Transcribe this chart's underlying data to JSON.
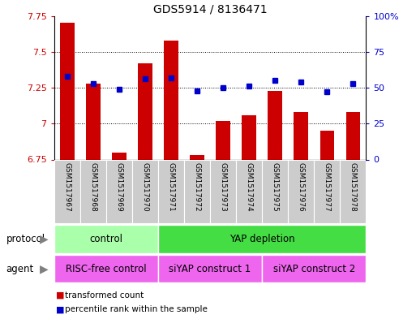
{
  "title": "GDS5914 / 8136471",
  "samples": [
    "GSM1517967",
    "GSM1517968",
    "GSM1517969",
    "GSM1517970",
    "GSM1517971",
    "GSM1517972",
    "GSM1517973",
    "GSM1517974",
    "GSM1517975",
    "GSM1517976",
    "GSM1517977",
    "GSM1517978"
  ],
  "transformed_count": [
    7.7,
    7.28,
    6.8,
    7.42,
    7.58,
    6.78,
    7.02,
    7.06,
    7.23,
    7.08,
    6.95,
    7.08
  ],
  "percentile": [
    58,
    53,
    49,
    56,
    57,
    48,
    50,
    51,
    55,
    54,
    47,
    53
  ],
  "ylim_left": [
    6.75,
    7.75
  ],
  "ylim_right": [
    0,
    100
  ],
  "yticks_left": [
    6.75,
    7.0,
    7.25,
    7.5,
    7.75
  ],
  "yticks_right": [
    0,
    25,
    50,
    75,
    100
  ],
  "ytick_labels_left": [
    "6.75",
    "7",
    "7.25",
    "7.5",
    "7.75"
  ],
  "ytick_labels_right": [
    "0",
    "25",
    "50",
    "75",
    "100%"
  ],
  "bar_color": "#cc0000",
  "dot_color": "#0000cc",
  "bar_bottom": 6.75,
  "protocol_groups": [
    {
      "label": "control",
      "start": 0,
      "end": 3,
      "color": "#aaffaa"
    },
    {
      "label": "YAP depletion",
      "start": 4,
      "end": 11,
      "color": "#44dd44"
    }
  ],
  "agent_groups": [
    {
      "label": "RISC-free control",
      "start": 0,
      "end": 3,
      "color": "#ee66ee"
    },
    {
      "label": "siYAP construct 1",
      "start": 4,
      "end": 7,
      "color": "#ee66ee"
    },
    {
      "label": "siYAP construct 2",
      "start": 8,
      "end": 11,
      "color": "#ee66ee"
    }
  ],
  "legend_items": [
    {
      "label": "transformed count",
      "color": "#cc0000"
    },
    {
      "label": "percentile rank within the sample",
      "color": "#0000cc"
    }
  ],
  "protocol_label": "protocol",
  "agent_label": "agent",
  "xtick_bg": "#cccccc"
}
